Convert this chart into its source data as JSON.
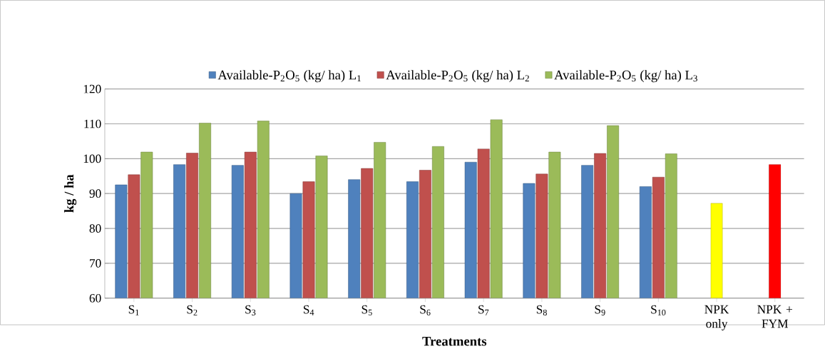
{
  "chart_data": {
    "type": "bar",
    "xlabel": "Treatments",
    "ylabel": "kg / ha",
    "categories": [
      "S$_{1}$",
      "S$_{2}$",
      "S$_{3}$",
      "S$_{4}$",
      "S$_{5}$",
      "S$_{6}$",
      "S$_{7}$",
      "S$_{8}$",
      "S$_{9}$",
      "S$_{10}$",
      "NPK only",
      "NPK + FYM"
    ],
    "series": [
      {
        "name": "Available-P$_{2}$O$_{5}$ (kg/ ha) L$_{1}$",
        "color": "#4f81bd",
        "values": [
          92.5,
          98.3,
          98.1,
          90.0,
          94.0,
          93.4,
          99.0,
          92.9,
          98.1,
          92.0,
          null,
          null
        ]
      },
      {
        "name": "Available-P$_{2}$O$_{5}$ (kg/ ha) L$_{2}$",
        "color": "#c0504d",
        "values": [
          95.4,
          101.6,
          101.9,
          93.4,
          97.2,
          96.7,
          102.8,
          95.6,
          101.5,
          94.7,
          null,
          null
        ]
      },
      {
        "name": "Available-P$_{2}$O$_{5}$ (kg/ ha) L$_{3}$",
        "color": "#9bbb59",
        "values": [
          101.9,
          110.2,
          110.8,
          100.8,
          104.7,
          103.5,
          111.2,
          101.9,
          109.5,
          101.4,
          null,
          null
        ]
      },
      {
        "colors": [
          null,
          null,
          null,
          null,
          null,
          null,
          null,
          null,
          null,
          null,
          "#ffff00",
          "#ff0000"
        ],
        "values": [
          null,
          null,
          null,
          null,
          null,
          null,
          null,
          null,
          null,
          null,
          87.2,
          98.3
        ]
      }
    ],
    "ylim": [
      60,
      120
    ],
    "yticks": [
      60,
      70,
      80,
      90,
      100,
      110,
      120
    ],
    "grid": "y",
    "legend": "top"
  }
}
